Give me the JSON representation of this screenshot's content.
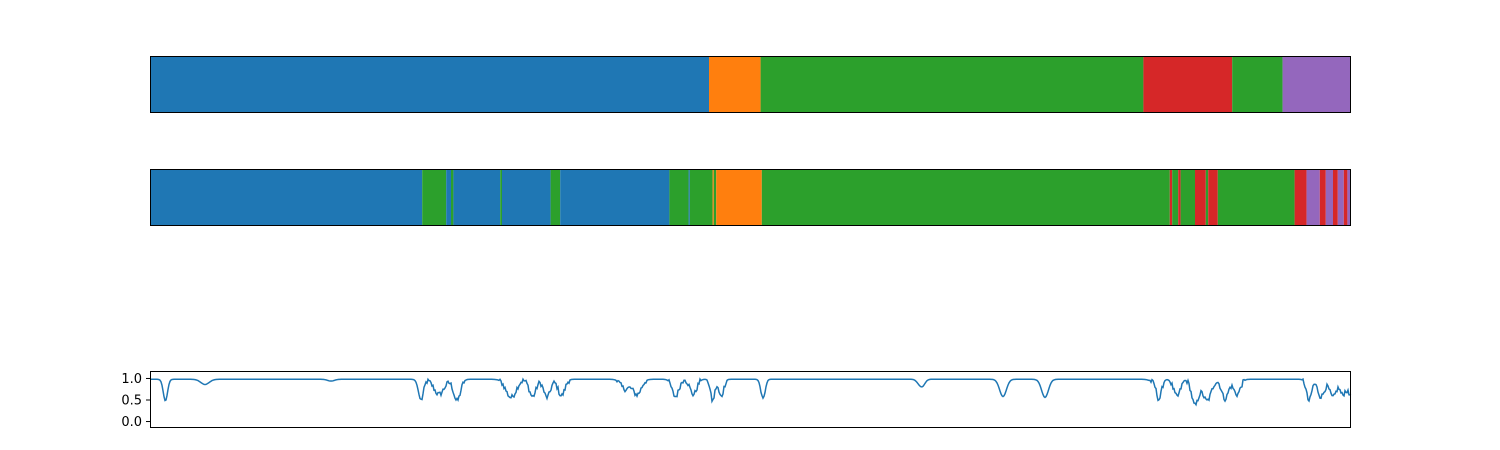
{
  "colors": {
    "0": "#1f77b4",
    "1": "#ff7f0e",
    "2": "#2ca02c",
    "3": "#d62728",
    "4": "#9467bd",
    "line": "#1f77b4",
    "frame": "#000000",
    "background": "#ffffff"
  },
  "chart_data": [
    {
      "type": "segmentation-strip",
      "x_range": [
        0,
        1
      ],
      "segments": [
        {
          "start": 0.0,
          "end": 0.465,
          "label": "0"
        },
        {
          "start": 0.465,
          "end": 0.508,
          "label": "1"
        },
        {
          "start": 0.508,
          "end": 0.827,
          "label": "2"
        },
        {
          "start": 0.827,
          "end": 0.901,
          "label": "3"
        },
        {
          "start": 0.901,
          "end": 0.943,
          "label": "2"
        },
        {
          "start": 0.943,
          "end": 1.0,
          "label": "4"
        }
      ],
      "axes_visible": false
    },
    {
      "type": "segmentation-strip",
      "x_range": [
        0,
        1
      ],
      "segments": [
        {
          "start": 0.0,
          "end": 0.226,
          "label": "0"
        },
        {
          "start": 0.226,
          "end": 0.246,
          "label": "2"
        },
        {
          "start": 0.246,
          "end": 0.25,
          "label": "0"
        },
        {
          "start": 0.25,
          "end": 0.252,
          "label": "2"
        },
        {
          "start": 0.252,
          "end": 0.291,
          "label": "0"
        },
        {
          "start": 0.291,
          "end": 0.2925,
          "label": "2"
        },
        {
          "start": 0.2925,
          "end": 0.333,
          "label": "0"
        },
        {
          "start": 0.333,
          "end": 0.341,
          "label": "2"
        },
        {
          "start": 0.341,
          "end": 0.432,
          "label": "0"
        },
        {
          "start": 0.432,
          "end": 0.448,
          "label": "2"
        },
        {
          "start": 0.448,
          "end": 0.449,
          "label": "0"
        },
        {
          "start": 0.449,
          "end": 0.468,
          "label": "2"
        },
        {
          "start": 0.468,
          "end": 0.469,
          "label": "1"
        },
        {
          "start": 0.469,
          "end": 0.471,
          "label": "2"
        },
        {
          "start": 0.471,
          "end": 0.509,
          "label": "1"
        },
        {
          "start": 0.509,
          "end": 0.849,
          "label": "2"
        },
        {
          "start": 0.849,
          "end": 0.851,
          "label": "3"
        },
        {
          "start": 0.851,
          "end": 0.856,
          "label": "2"
        },
        {
          "start": 0.856,
          "end": 0.858,
          "label": "3"
        },
        {
          "start": 0.858,
          "end": 0.87,
          "label": "2"
        },
        {
          "start": 0.87,
          "end": 0.879,
          "label": "3"
        },
        {
          "start": 0.879,
          "end": 0.881,
          "label": "2"
        },
        {
          "start": 0.881,
          "end": 0.889,
          "label": "3"
        },
        {
          "start": 0.889,
          "end": 0.953,
          "label": "2"
        },
        {
          "start": 0.953,
          "end": 0.963,
          "label": "3"
        },
        {
          "start": 0.963,
          "end": 0.974,
          "label": "4"
        },
        {
          "start": 0.974,
          "end": 0.979,
          "label": "3"
        },
        {
          "start": 0.979,
          "end": 0.985,
          "label": "4"
        },
        {
          "start": 0.985,
          "end": 0.989,
          "label": "3"
        },
        {
          "start": 0.989,
          "end": 0.994,
          "label": "4"
        },
        {
          "start": 0.994,
          "end": 0.997,
          "label": "3"
        },
        {
          "start": 0.997,
          "end": 1.0,
          "label": "4"
        }
      ],
      "axes_visible": false
    },
    {
      "type": "line",
      "ylim": [
        -0.15,
        1.15
      ],
      "yticks": [
        "0.0",
        "0.5",
        "1.0"
      ],
      "xticks_visible": false,
      "baseline": 0.98,
      "dips": [
        {
          "x": 0.012,
          "depth": 0.5,
          "width": 0.0025
        },
        {
          "x": 0.045,
          "depth": 0.12,
          "width": 0.005
        },
        {
          "x": 0.15,
          "depth": 0.04,
          "width": 0.004
        },
        {
          "x": 0.225,
          "depth": 0.48,
          "width": 0.003
        },
        {
          "x": 0.24,
          "depth": 0.35,
          "width": 0.006
        },
        {
          "x": 0.255,
          "depth": 0.5,
          "width": 0.004
        },
        {
          "x": 0.3,
          "depth": 0.42,
          "width": 0.006
        },
        {
          "x": 0.318,
          "depth": 0.4,
          "width": 0.004
        },
        {
          "x": 0.33,
          "depth": 0.42,
          "width": 0.004
        },
        {
          "x": 0.342,
          "depth": 0.38,
          "width": 0.004
        },
        {
          "x": 0.395,
          "depth": 0.22,
          "width": 0.005
        },
        {
          "x": 0.405,
          "depth": 0.35,
          "width": 0.005
        },
        {
          "x": 0.437,
          "depth": 0.4,
          "width": 0.004
        },
        {
          "x": 0.452,
          "depth": 0.35,
          "width": 0.004
        },
        {
          "x": 0.468,
          "depth": 0.5,
          "width": 0.0025
        },
        {
          "x": 0.475,
          "depth": 0.4,
          "width": 0.003
        },
        {
          "x": 0.51,
          "depth": 0.45,
          "width": 0.0025
        },
        {
          "x": 0.64,
          "depth": 0.08,
          "width": 0.003
        },
        {
          "x": 0.643,
          "depth": 0.14,
          "width": 0.003
        },
        {
          "x": 0.71,
          "depth": 0.4,
          "width": 0.004
        },
        {
          "x": 0.745,
          "depth": 0.42,
          "width": 0.004
        },
        {
          "x": 0.835,
          "depth": 0.05,
          "width": 0.004
        },
        {
          "x": 0.835,
          "depth": 0.0,
          "width": 0.001
        },
        {
          "x": 0.84,
          "depth": 0.45,
          "width": 0.003
        },
        {
          "x": 0.855,
          "depth": 0.4,
          "width": 0.004
        },
        {
          "x": 0.87,
          "depth": 0.6,
          "width": 0.004
        },
        {
          "x": 0.88,
          "depth": 0.5,
          "width": 0.005
        },
        {
          "x": 0.895,
          "depth": 0.45,
          "width": 0.004
        },
        {
          "x": 0.905,
          "depth": 0.35,
          "width": 0.004
        },
        {
          "x": 0.965,
          "depth": 0.5,
          "width": 0.003
        },
        {
          "x": 0.975,
          "depth": 0.4,
          "width": 0.004
        },
        {
          "x": 0.985,
          "depth": 0.42,
          "width": 0.004
        },
        {
          "x": 0.993,
          "depth": 0.35,
          "width": 0.003
        },
        {
          "x": 0.999,
          "depth": 0.35,
          "width": 0.003
        }
      ],
      "noisy_regions": [
        [
          0.225,
          0.52
        ],
        [
          0.82,
          1.0
        ]
      ]
    }
  ]
}
